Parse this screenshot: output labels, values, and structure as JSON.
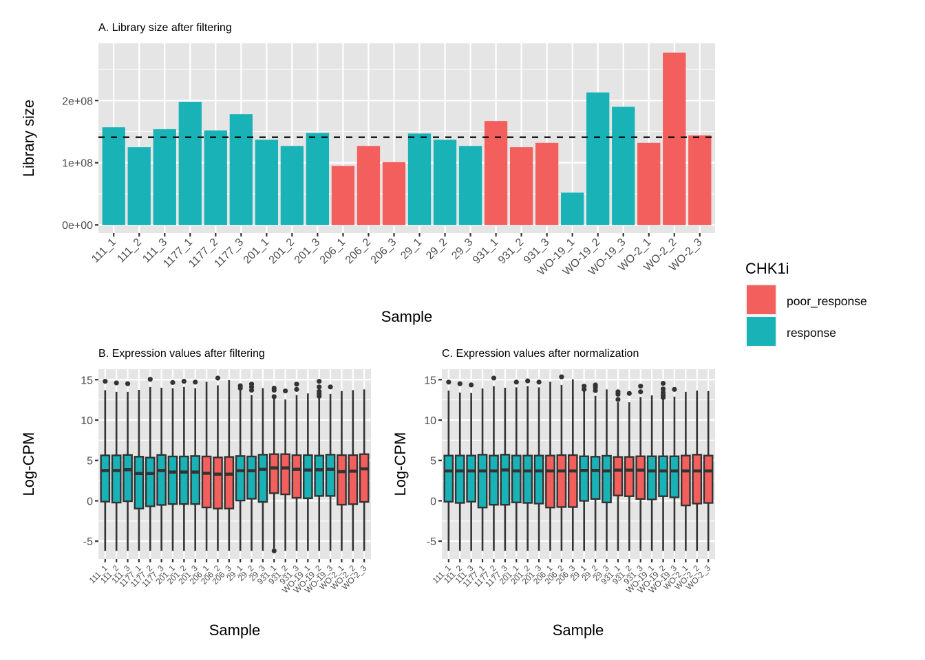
{
  "chart_data": [
    {
      "type": "bar",
      "title": "A. Library size after filtering",
      "xlabel": "Sample",
      "ylabel": "Library size",
      "categories": [
        "111_1",
        "111_2",
        "111_3",
        "1177_1",
        "1177_2",
        "1177_3",
        "201_1",
        "201_2",
        "201_3",
        "206_1",
        "206_2",
        "206_3",
        "29_1",
        "29_2",
        "29_3",
        "931_1",
        "931_2",
        "931_3",
        "WO-19_1",
        "WO-19_2",
        "WO-19_3",
        "WO-2_1",
        "WO-2_2",
        "WO-2_3"
      ],
      "values": [
        157000000,
        125000000,
        154000000,
        198000000,
        152000000,
        178000000,
        137000000,
        127000000,
        148000000,
        95000000,
        127000000,
        101000000,
        147000000,
        137000000,
        127000000,
        167000000,
        125000000,
        132000000,
        52000000,
        213000000,
        190000000,
        132000000,
        277000000,
        144000000
      ],
      "groups": [
        "response",
        "response",
        "response",
        "response",
        "response",
        "response",
        "response",
        "response",
        "response",
        "poor_response",
        "poor_response",
        "poor_response",
        "response",
        "response",
        "response",
        "poor_response",
        "poor_response",
        "poor_response",
        "response",
        "response",
        "response",
        "poor_response",
        "poor_response",
        "poor_response"
      ],
      "reference_line": {
        "y": 141000000,
        "style": "dashed"
      },
      "yticks": [
        0,
        100000000,
        200000000
      ],
      "ytick_labels": [
        "0e+00",
        "1e+08",
        "2e+08"
      ],
      "ylim": [
        -13000000,
        292000000
      ],
      "grid": true
    },
    {
      "type": "boxplot",
      "title": "B. Expression values after filtering",
      "xlabel": "Sample",
      "ylabel": "Log-CPM",
      "yticks": [
        -5,
        0,
        5,
        10,
        15
      ],
      "ytick_labels": [
        "-5",
        "0",
        "5",
        "10",
        "15"
      ],
      "ylim": [
        -7.2,
        16.3
      ],
      "grid": true,
      "boxes": [
        {
          "sample": "111_1",
          "group": "response",
          "q1": -0.1,
          "median": 3.75,
          "q3": 5.63,
          "whisker_low": -6.2,
          "whisker_high": 13.7,
          "outliers": [
            14.8
          ]
        },
        {
          "sample": "111_2",
          "group": "response",
          "q1": -0.22,
          "median": 3.75,
          "q3": 5.63,
          "whisker_low": -6.2,
          "whisker_high": 13.5,
          "outliers": [
            14.6
          ]
        },
        {
          "sample": "111_3",
          "group": "response",
          "q1": -0.05,
          "median": 3.85,
          "q3": 5.68,
          "whisker_low": -6.2,
          "whisker_high": 13.5,
          "outliers": [
            14.5
          ]
        },
        {
          "sample": "1177_1",
          "group": "response",
          "q1": -0.96,
          "median": 3.38,
          "q3": 5.46,
          "whisker_low": -6.2,
          "whisker_high": 13.75,
          "outliers": []
        },
        {
          "sample": "1177_2",
          "group": "response",
          "q1": -0.68,
          "median": 3.38,
          "q3": 5.35,
          "whisker_low": -6.2,
          "whisker_high": 14.1,
          "outliers": [
            15.05
          ]
        },
        {
          "sample": "1177_3",
          "group": "response",
          "q1": -0.51,
          "median": 3.75,
          "q3": 5.68,
          "whisker_low": -6.2,
          "whisker_high": 14.0,
          "outliers": []
        },
        {
          "sample": "201_1",
          "group": "response",
          "q1": -0.4,
          "median": 3.56,
          "q3": 5.49,
          "whisker_low": -6.2,
          "whisker_high": 13.95,
          "outliers": [
            14.65
          ]
        },
        {
          "sample": "201_2",
          "group": "response",
          "q1": -0.4,
          "median": 3.56,
          "q3": 5.49,
          "whisker_low": -6.2,
          "whisker_high": 14.1,
          "outliers": [
            14.8
          ]
        },
        {
          "sample": "201_3",
          "group": "response",
          "q1": -0.4,
          "median": 3.56,
          "q3": 5.54,
          "whisker_low": -6.2,
          "whisker_high": 13.95,
          "outliers": [
            14.7
          ]
        },
        {
          "sample": "206_1",
          "group": "poor_response",
          "q1": -0.82,
          "median": 3.41,
          "q3": 5.49,
          "whisker_low": -6.2,
          "whisker_high": 14.75,
          "outliers": []
        },
        {
          "sample": "206_2",
          "group": "poor_response",
          "q1": -0.96,
          "median": 3.3,
          "q3": 5.37,
          "whisker_low": -6.2,
          "whisker_high": 14.3,
          "outliers": [
            15.2
          ]
        },
        {
          "sample": "206_3",
          "group": "poor_response",
          "q1": -0.96,
          "median": 3.3,
          "q3": 5.43,
          "whisker_low": -6.2,
          "whisker_high": 14.95,
          "outliers": []
        },
        {
          "sample": "29_1",
          "group": "response",
          "q1": 0.03,
          "median": 3.73,
          "q3": 5.54,
          "whisker_low": -6.2,
          "whisker_high": 13.7,
          "outliers": [
            13.95,
            14.25
          ]
        },
        {
          "sample": "29_2",
          "group": "response",
          "q1": 0.26,
          "median": 3.73,
          "q3": 5.49,
          "whisker_low": -6.2,
          "whisker_high": 13.1,
          "outliers": [
            13.7,
            14.1,
            14.45
          ]
        },
        {
          "sample": "29_3",
          "group": "response",
          "q1": -0.14,
          "median": 3.9,
          "q3": 5.71,
          "whisker_low": -6.2,
          "whisker_high": 13.95,
          "outliers": []
        },
        {
          "sample": "931_1",
          "group": "poor_response",
          "q1": 0.94,
          "median": 4.07,
          "q3": 5.77,
          "whisker_low": -5.9,
          "whisker_high": 12.7,
          "outliers": [
            12.9,
            13.7,
            13.95,
            -6.2
          ]
        },
        {
          "sample": "931_2",
          "group": "poor_response",
          "q1": 0.8,
          "median": 4.07,
          "q3": 5.77,
          "whisker_low": -6.2,
          "whisker_high": 12.55,
          "outliers": [
            13.6
          ]
        },
        {
          "sample": "931_3",
          "group": "poor_response",
          "q1": 0.37,
          "median": 3.9,
          "q3": 5.66,
          "whisker_low": -6.2,
          "whisker_high": 13.1,
          "outliers": [
            13.8,
            14.45
          ]
        },
        {
          "sample": "WO-19_1",
          "group": "response",
          "q1": 0.31,
          "median": 3.81,
          "q3": 5.66,
          "whisker_low": -6.2,
          "whisker_high": 13.3,
          "outliers": []
        },
        {
          "sample": "WO-19_2",
          "group": "response",
          "q1": 0.6,
          "median": 3.84,
          "q3": 5.6,
          "whisker_low": -6.2,
          "whisker_high": 12.7,
          "outliers": [
            12.95,
            13.25,
            13.55,
            14.1,
            14.8
          ]
        },
        {
          "sample": "WO-19_3",
          "group": "response",
          "q1": 0.6,
          "median": 3.9,
          "q3": 5.71,
          "whisker_low": -6.2,
          "whisker_high": 13.25,
          "outliers": [
            14.1
          ]
        },
        {
          "sample": "WO-2_1",
          "group": "poor_response",
          "q1": -0.48,
          "median": 3.61,
          "q3": 5.66,
          "whisker_low": -6.2,
          "whisker_high": 13.6,
          "outliers": []
        },
        {
          "sample": "WO-2_2",
          "group": "poor_response",
          "q1": -0.42,
          "median": 3.67,
          "q3": 5.66,
          "whisker_low": -6.2,
          "whisker_high": 13.7,
          "outliers": []
        },
        {
          "sample": "WO-2_3",
          "group": "poor_response",
          "q1": -0.14,
          "median": 3.96,
          "q3": 5.77,
          "whisker_low": -6.2,
          "whisker_high": 13.8,
          "outliers": []
        }
      ]
    },
    {
      "type": "boxplot",
      "title": "C. Expression values after normalization",
      "xlabel": "Sample",
      "ylabel": "Log-CPM",
      "yticks": [
        -5,
        0,
        5,
        10,
        15
      ],
      "ytick_labels": [
        "-5",
        "0",
        "5",
        "10",
        "15"
      ],
      "ylim": [
        -7.2,
        16.3
      ],
      "grid": true,
      "boxes": [
        {
          "sample": "111_1",
          "group": "response",
          "q1": -0.11,
          "median": 3.7,
          "q3": 5.6,
          "whisker_low": -6.2,
          "whisker_high": 13.65,
          "outliers": [
            14.7
          ]
        },
        {
          "sample": "111_2",
          "group": "response",
          "q1": -0.26,
          "median": 3.7,
          "q3": 5.6,
          "whisker_low": -6.2,
          "whisker_high": 13.4,
          "outliers": [
            14.5
          ]
        },
        {
          "sample": "111_3",
          "group": "response",
          "q1": -0.11,
          "median": 3.7,
          "q3": 5.6,
          "whisker_low": -6.2,
          "whisker_high": 13.35,
          "outliers": [
            14.35
          ]
        },
        {
          "sample": "1177_1",
          "group": "response",
          "q1": -0.83,
          "median": 3.7,
          "q3": 5.71,
          "whisker_low": -6.2,
          "whisker_high": 13.9,
          "outliers": []
        },
        {
          "sample": "1177_2",
          "group": "response",
          "q1": -0.49,
          "median": 3.7,
          "q3": 5.6,
          "whisker_low": -6.2,
          "whisker_high": 14.2,
          "outliers": [
            15.2
          ]
        },
        {
          "sample": "1177_3",
          "group": "response",
          "q1": -0.49,
          "median": 3.82,
          "q3": 5.71,
          "whisker_low": -6.2,
          "whisker_high": 14.0,
          "outliers": []
        },
        {
          "sample": "201_1",
          "group": "response",
          "q1": -0.2,
          "median": 3.7,
          "q3": 5.6,
          "whisker_low": -6.2,
          "whisker_high": 14.05,
          "outliers": [
            14.7
          ]
        },
        {
          "sample": "201_2",
          "group": "response",
          "q1": -0.26,
          "median": 3.7,
          "q3": 5.6,
          "whisker_low": -6.2,
          "whisker_high": 14.2,
          "outliers": [
            14.85
          ]
        },
        {
          "sample": "201_3",
          "group": "response",
          "q1": -0.34,
          "median": 3.7,
          "q3": 5.6,
          "whisker_low": -6.2,
          "whisker_high": 14.05,
          "outliers": [
            14.7
          ]
        },
        {
          "sample": "206_1",
          "group": "poor_response",
          "q1": -0.83,
          "median": 3.7,
          "q3": 5.6,
          "whisker_low": -6.2,
          "whisker_high": 14.75,
          "outliers": []
        },
        {
          "sample": "206_2",
          "group": "poor_response",
          "q1": -0.77,
          "median": 3.7,
          "q3": 5.66,
          "whisker_low": -6.2,
          "whisker_high": 14.35,
          "outliers": [
            15.35
          ]
        },
        {
          "sample": "206_3",
          "group": "poor_response",
          "q1": -0.77,
          "median": 3.7,
          "q3": 5.66,
          "whisker_low": -6.2,
          "whisker_high": 15.05,
          "outliers": []
        },
        {
          "sample": "29_1",
          "group": "response",
          "q1": 0.0,
          "median": 3.76,
          "q3": 5.51,
          "whisker_low": -6.2,
          "whisker_high": 13.65,
          "outliers": [
            13.8,
            14.2
          ]
        },
        {
          "sample": "29_2",
          "group": "response",
          "q1": 0.23,
          "median": 3.76,
          "q3": 5.46,
          "whisker_low": -6.2,
          "whisker_high": 13.0,
          "outliers": [
            13.65,
            14.05,
            14.35
          ]
        },
        {
          "sample": "29_3",
          "group": "response",
          "q1": -0.2,
          "median": 3.7,
          "q3": 5.57,
          "whisker_low": -6.2,
          "whisker_high": 13.8,
          "outliers": []
        },
        {
          "sample": "931_1",
          "group": "poor_response",
          "q1": 0.66,
          "median": 3.8,
          "q3": 5.43,
          "whisker_low": -6.2,
          "whisker_high": 12.2,
          "outliers": [
            12.55,
            13.2,
            13.5
          ]
        },
        {
          "sample": "931_2",
          "group": "poor_response",
          "q1": 0.57,
          "median": 3.8,
          "q3": 5.43,
          "whisker_low": -6.2,
          "whisker_high": 12.2,
          "outliers": [
            13.3
          ]
        },
        {
          "sample": "931_3",
          "group": "poor_response",
          "q1": 0.23,
          "median": 3.8,
          "q3": 5.51,
          "whisker_low": -6.2,
          "whisker_high": 12.85,
          "outliers": [
            13.5,
            14.2
          ]
        },
        {
          "sample": "WO-19_1",
          "group": "response",
          "q1": 0.17,
          "median": 3.7,
          "q3": 5.51,
          "whisker_low": -6.2,
          "whisker_high": 13.05,
          "outliers": []
        },
        {
          "sample": "WO-19_2",
          "group": "response",
          "q1": 0.57,
          "median": 3.7,
          "q3": 5.51,
          "whisker_low": -6.2,
          "whisker_high": 12.55,
          "outliers": [
            12.8,
            13.05,
            13.4,
            13.85,
            14.55
          ]
        },
        {
          "sample": "WO-19_3",
          "group": "response",
          "q1": 0.43,
          "median": 3.7,
          "q3": 5.51,
          "whisker_low": -6.2,
          "whisker_high": 12.9,
          "outliers": [
            13.8
          ]
        },
        {
          "sample": "WO-2_1",
          "group": "poor_response",
          "q1": -0.57,
          "median": 3.7,
          "q3": 5.6,
          "whisker_low": -6.2,
          "whisker_high": 13.5,
          "outliers": []
        },
        {
          "sample": "WO-2_2",
          "group": "poor_response",
          "q1": -0.34,
          "median": 3.7,
          "q3": 5.71,
          "whisker_low": -6.2,
          "whisker_high": 13.65,
          "outliers": []
        },
        {
          "sample": "WO-2_3",
          "group": "poor_response",
          "q1": -0.26,
          "median": 3.7,
          "q3": 5.6,
          "whisker_low": -6.2,
          "whisker_high": 13.6,
          "outliers": []
        }
      ]
    }
  ],
  "legend": {
    "title": "CHK1i",
    "placement": "right",
    "items": [
      {
        "key": "poor_response",
        "label": "poor_response",
        "color": "#F8766D"
      },
      {
        "key": "response",
        "label": "response",
        "color": "#00BFC4"
      }
    ]
  },
  "colors": {
    "poor_response": "#F35F5C",
    "response": "#19B3B7",
    "panel_bg": "#E5E5E5",
    "grid": "#FFFFFF",
    "box_outline": "#333333"
  }
}
